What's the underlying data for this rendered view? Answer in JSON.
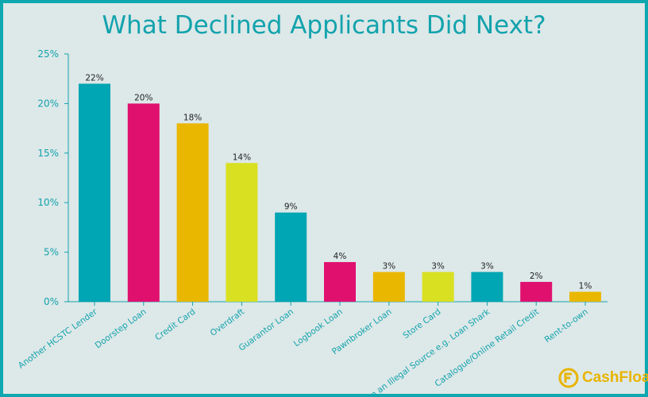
{
  "chart_data": {
    "type": "bar",
    "title": "What Declined Applicants Did Next?",
    "categories": [
      "Another HCSTC Lender",
      "Doorstep Loan",
      "Credit Card",
      "Overdraft",
      "Guarantor Loan",
      "Logbook Loan",
      "Pawnbroker Loan",
      "Store Card",
      "From an Illegal Source e.g. Loan Shark",
      "Catalogue/Online Retail Credit",
      "Rent-to-own"
    ],
    "values": [
      22,
      20,
      18,
      14,
      9,
      4,
      3,
      3,
      3,
      2,
      1
    ],
    "data_labels": [
      "22%",
      "20%",
      "18%",
      "14%",
      "9%",
      "4%",
      "3%",
      "3%",
      "3%",
      "2%",
      "1%"
    ],
    "bar_colors": [
      "#00a6b4",
      "#e0106f",
      "#eab700",
      "#d9e021",
      "#00a6b4",
      "#e0106f",
      "#eab700",
      "#d9e021",
      "#00a6b4",
      "#e0106f",
      "#eab700"
    ],
    "yticks": [
      0,
      5,
      10,
      15,
      20,
      25
    ],
    "ytick_labels": [
      "0%",
      "5%",
      "10%",
      "15%",
      "20%",
      "25%"
    ],
    "ylim": [
      0,
      25
    ],
    "grid": false,
    "xlabel": "",
    "ylabel": ""
  },
  "colors": {
    "background": "#dde8e8",
    "border": "#10a8b0",
    "title": "#12a3ad",
    "axis": "#12a3ad"
  },
  "logo": {
    "text": "CashFloat",
    "icon": "cashfloat-logo-icon"
  }
}
